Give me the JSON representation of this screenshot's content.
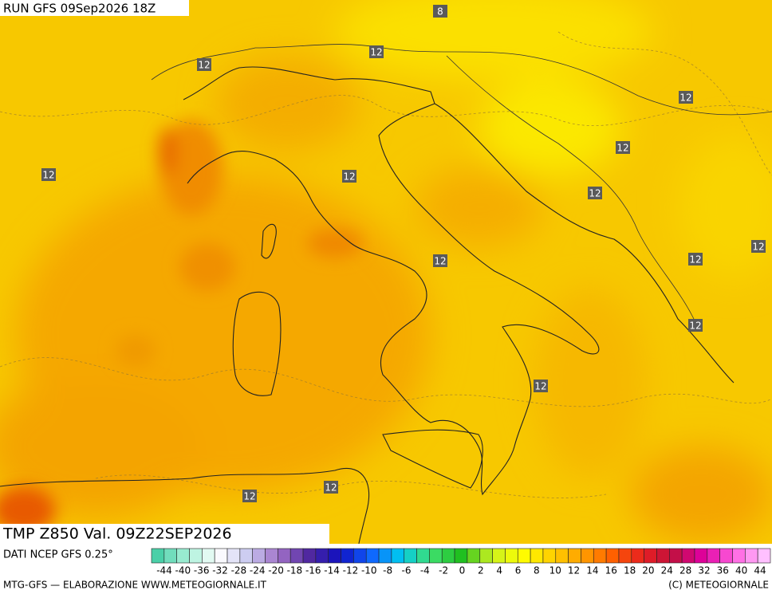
{
  "header": {
    "run": "RUN GFS 09Sep2026 18Z"
  },
  "contour_labels": [
    8,
    12,
    12,
    12,
    12,
    12,
    12,
    12,
    12,
    12,
    12,
    12,
    12,
    12,
    12
  ],
  "map_title": "TMP Z850 Val. 09Z22SEP2026",
  "source": "DATI NCEP GFS 0.25°",
  "colorbar": {
    "ticks": [
      -44,
      -40,
      -36,
      -32,
      -28,
      -24,
      -20,
      -18,
      -16,
      -14,
      -12,
      -10,
      -8,
      -6,
      -4,
      -2,
      0,
      2,
      4,
      6,
      8,
      10,
      12,
      14,
      16,
      18,
      20,
      24,
      28,
      32,
      36,
      40,
      44
    ]
  },
  "footer": {
    "left": "MTG-GFS — ELABORAZIONE WWW.METEOGIORNALE.IT",
    "right": "(C) METEOGIORNALE"
  }
}
